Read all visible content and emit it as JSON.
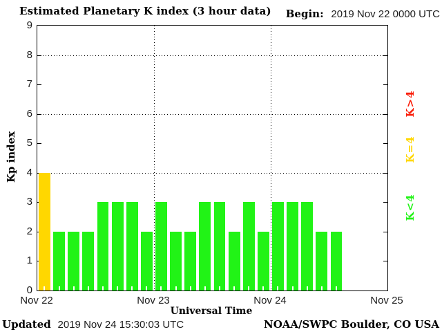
{
  "header": {
    "title": "Estimated Planetary K index (3 hour data)",
    "begin_label": "Begin:",
    "begin_value": "2019 Nov 22 0000 UTC"
  },
  "axes": {
    "ylabel": "Kp index",
    "xlabel": "Universal Time"
  },
  "legend": [
    {
      "label": "K>4",
      "color": "#fa1e0a"
    },
    {
      "label": "K=4",
      "color": "#ffd700"
    },
    {
      "label": "K<4",
      "color": "#21f316"
    }
  ],
  "footer": {
    "updated_label": "Updated",
    "updated_value": "2019 Nov 24 15:30:03 UTC",
    "credit": "NOAA/SWPC Boulder, CO USA"
  },
  "chart_data": {
    "type": "bar",
    "title": "Estimated Planetary K index (3 hour data)",
    "xlabel": "Universal Time",
    "ylabel": "Kp index",
    "ylim": [
      0,
      9
    ],
    "y_ticks": [
      0,
      1,
      2,
      3,
      4,
      5,
      6,
      7,
      8,
      9
    ],
    "gridlines_y": [
      4,
      6,
      8
    ],
    "grid": "dotted",
    "x_tick_labels": [
      "Nov 22",
      "Nov 23",
      "Nov 24",
      "Nov 25"
    ],
    "days_shown": 3,
    "bars_per_day": 8,
    "bar_interval_hours": 3,
    "values": [
      4,
      2,
      2,
      2,
      3,
      3,
      3,
      2,
      3,
      2,
      2,
      3,
      3,
      2,
      3,
      2,
      3,
      3,
      3,
      2,
      2
    ],
    "series": [
      {
        "name": "Nov 22",
        "values": [
          4,
          2,
          2,
          2,
          3,
          3,
          3,
          2
        ]
      },
      {
        "name": "Nov 23",
        "values": [
          3,
          2,
          2,
          3,
          3,
          2,
          3,
          2
        ]
      },
      {
        "name": "Nov 24",
        "values": [
          3,
          3,
          3,
          2,
          2
        ]
      }
    ],
    "colors": {
      "k_lt_4": "#21f316",
      "k_eq_4": "#ffd700",
      "k_gt_4": "#fa1e0a"
    },
    "legend_position": "right-margin-rotated"
  }
}
